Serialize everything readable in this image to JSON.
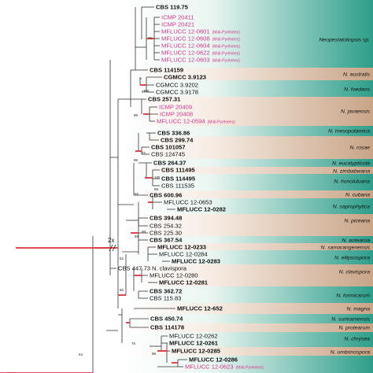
{
  "colors": {
    "teal_dark": "#2e9e8a",
    "teal_light": "#e9f5f1",
    "tan_dark": "#c9a487",
    "tan_light": "#f6ece4",
    "branch": "#333333",
    "branch_highlight": "#d9343b",
    "label_pink": "#d2378c",
    "label_black": "#111111"
  },
  "scale_label": "2x",
  "taxa": [
    {
      "label": "CBS 119.75",
      "color": "black",
      "bold": true,
      "note": ""
    },
    {
      "label": "ICMP 20411",
      "color": "pink",
      "bold": false,
      "note": ""
    },
    {
      "label": "ICMP 20421",
      "color": "pink",
      "bold": false,
      "note": ""
    },
    {
      "label": "MFLUCC 12-0601",
      "color": "pink",
      "bold": false,
      "note": "(Midi-Pyrénées)"
    },
    {
      "label": "MFLUCC 12-0608",
      "color": "pink",
      "bold": false,
      "note": "(Midi-Pyrénées)"
    },
    {
      "label": "MFLUCC 12-0604",
      "color": "pink",
      "bold": false,
      "note": "(Midi-Pyrénées)"
    },
    {
      "label": "MFLUCC 12-0622",
      "color": "pink",
      "bold": false,
      "note": "(Midi-Pyrénées)"
    },
    {
      "label": "MFLUCC 12-0603",
      "color": "pink",
      "bold": false,
      "note": "(Midi-Pyrénées)"
    },
    {
      "label": "CBS 114159",
      "color": "black",
      "bold": true,
      "note": ""
    },
    {
      "label": "CGMCC 3.9123",
      "color": "black",
      "bold": true,
      "note": ""
    },
    {
      "label": "CGMCC 3.9202",
      "color": "black",
      "bold": false,
      "note": ""
    },
    {
      "label": "CGMCC 3.9178",
      "color": "black",
      "bold": false,
      "note": ""
    },
    {
      "label": "CBS 257.31",
      "color": "black",
      "bold": true,
      "note": ""
    },
    {
      "label": "ICMP 20409",
      "color": "pink",
      "bold": false,
      "note": ""
    },
    {
      "label": "ICMP 20408",
      "color": "pink",
      "bold": false,
      "note": ""
    },
    {
      "label": "MFLUCC 12-0594",
      "color": "pink",
      "bold": false,
      "note": "(Midi-Pyrénées)"
    },
    {
      "label": "CBS 336.86",
      "color": "black",
      "bold": true,
      "note": ""
    },
    {
      "label": "CBS 299.74",
      "color": "black",
      "bold": true,
      "note": ""
    },
    {
      "label": "CBS 101057",
      "color": "black",
      "bold": true,
      "note": ""
    },
    {
      "label": "CBS 124745",
      "color": "black",
      "bold": false,
      "note": ""
    },
    {
      "label": "CBS 264.37",
      "color": "black",
      "bold": true,
      "note": ""
    },
    {
      "label": "CBS 111495",
      "color": "black",
      "bold": true,
      "note": ""
    },
    {
      "label": "CBS 114495",
      "color": "black",
      "bold": true,
      "note": ""
    },
    {
      "label": "CBS 111535",
      "color": "black",
      "bold": false,
      "note": ""
    },
    {
      "label": "CBS 600.96",
      "color": "black",
      "bold": true,
      "note": ""
    },
    {
      "label": "MFLUCC 12-0653",
      "color": "black",
      "bold": false,
      "note": ""
    },
    {
      "label": "MFLUCC 12-0282",
      "color": "black",
      "bold": true,
      "note": ""
    },
    {
      "label": "CBS 394.48",
      "color": "black",
      "bold": true,
      "note": ""
    },
    {
      "label": "CBS 254.32",
      "color": "black",
      "bold": false,
      "note": ""
    },
    {
      "label": "CBS 225.30",
      "color": "black",
      "bold": false,
      "note": ""
    },
    {
      "label": "CBS 367.54",
      "color": "black",
      "bold": true,
      "note": ""
    },
    {
      "label": "MFLUCC 12-0233",
      "color": "black",
      "bold": true,
      "note": ""
    },
    {
      "label": "MFLUCC 12-0284",
      "color": "black",
      "bold": false,
      "note": ""
    },
    {
      "label": "MFLUCC 12-0283",
      "color": "black",
      "bold": true,
      "note": ""
    },
    {
      "label": "CBS 447.73 N. clavispora",
      "color": "black",
      "bold": false,
      "note": ""
    },
    {
      "label": "MFLUCC 12-0280",
      "color": "black",
      "bold": false,
      "note": ""
    },
    {
      "label": "MFLUCC 12-0281",
      "color": "black",
      "bold": true,
      "note": ""
    },
    {
      "label": "CBS 362.72",
      "color": "black",
      "bold": true,
      "note": ""
    },
    {
      "label": "CBS 115.83",
      "color": "black",
      "bold": false,
      "note": ""
    },
    {
      "label": "MFLUCC 12-652",
      "color": "black",
      "bold": true,
      "note": ""
    },
    {
      "label": "CBS 450.74",
      "color": "black",
      "bold": true,
      "note": ""
    },
    {
      "label": "CBS 114178",
      "color": "black",
      "bold": true,
      "note": ""
    },
    {
      "label": "MFLUCC 12-0262",
      "color": "black",
      "bold": false,
      "note": ""
    },
    {
      "label": "MFLUCC 12-0261",
      "color": "black",
      "bold": true,
      "note": ""
    },
    {
      "label": "MFLUCC 12-0285",
      "color": "black",
      "bold": true,
      "note": ""
    },
    {
      "label": "MFLUCC 12-0286",
      "color": "black",
      "bold": true,
      "note": ""
    },
    {
      "label": "MFLUCC 12-0623",
      "color": "pink",
      "bold": false,
      "note": "(Midi-Pyrénées)"
    }
  ],
  "clades": [
    {
      "name": "Neopestalotiopsis sp.",
      "color": "teal"
    },
    {
      "name": "N. australis",
      "color": "tan"
    },
    {
      "name": "N. foedans",
      "color": "teal"
    },
    {
      "name": "N. javaensis",
      "color": "tan"
    },
    {
      "name": "N. mesopotamica",
      "color": "teal"
    },
    {
      "name": "N. rosae",
      "color": "tan"
    },
    {
      "name": "N. eucalypticola",
      "color": "teal"
    },
    {
      "name": "N. zimbabwana",
      "color": "tan"
    },
    {
      "name": "N. honoluluana",
      "color": "teal"
    },
    {
      "name": "N. cubana",
      "color": "tan"
    },
    {
      "name": "N. saprophytica",
      "color": "teal"
    },
    {
      "name": "N. piceana",
      "color": "tan"
    },
    {
      "name": "N. aotearoa",
      "color": "teal"
    },
    {
      "name": "N. samarangenensis",
      "color": "tan"
    },
    {
      "name": "N. ellipsospora",
      "color": "teal"
    },
    {
      "name": "N. clavispora",
      "color": "tan"
    },
    {
      "name": "N. formicarum",
      "color": "teal"
    },
    {
      "name": "N. magna",
      "color": "tan"
    },
    {
      "name": "N. surinamensis",
      "color": "teal"
    },
    {
      "name": "N. protearum",
      "color": "tan"
    },
    {
      "name": "N. chrysea",
      "color": "teal"
    },
    {
      "name": "N. umbrinospora",
      "color": "tan"
    },
    {
      "name": "",
      "color": "teal"
    }
  ],
  "support_values": [
    "79",
    "94",
    "98",
    "100",
    "96",
    "72",
    "55",
    "100",
    "99",
    "99",
    "99",
    "62",
    "66",
    "64",
    "75",
    "99"
  ]
}
